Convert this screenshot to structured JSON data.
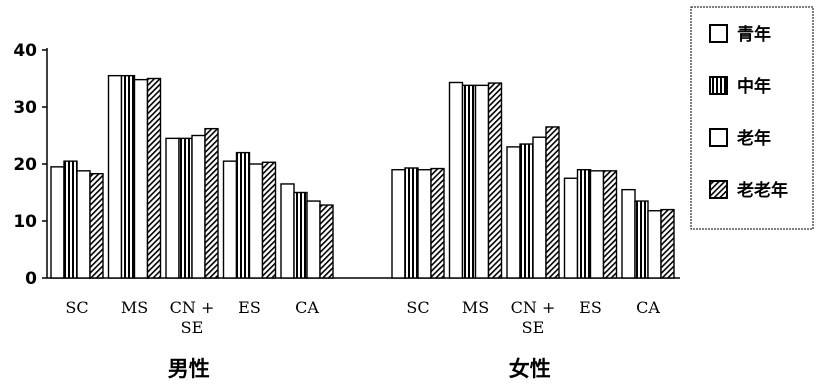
{
  "chart_data": {
    "type": "bar",
    "ylim": [
      0,
      40
    ],
    "yticks": [
      0,
      10,
      20,
      30,
      40
    ],
    "legend_position": "top-right",
    "groups": [
      {
        "label": "男性",
        "categories": [
          "SC",
          "MS",
          "CN + SE",
          "ES",
          "CA"
        ],
        "series": [
          {
            "name": "青年",
            "values": [
              19.5,
              35.5,
              24.5,
              20.5,
              16.5
            ]
          },
          {
            "name": "中年",
            "values": [
              20.5,
              35.5,
              24.5,
              22.0,
              15.0
            ]
          },
          {
            "name": "老年",
            "values": [
              18.8,
              34.8,
              25.0,
              20.0,
              13.5
            ]
          },
          {
            "name": "老老年",
            "values": [
              18.3,
              35.0,
              26.2,
              20.3,
              12.8
            ]
          }
        ]
      },
      {
        "label": "女性",
        "categories": [
          "SC",
          "MS",
          "CN + SE",
          "ES",
          "CA"
        ],
        "series": [
          {
            "name": "青年",
            "values": [
              19.0,
              34.3,
              23.0,
              17.5,
              15.5
            ]
          },
          {
            "name": "中年",
            "values": [
              19.3,
              33.8,
              23.5,
              19.0,
              13.5
            ]
          },
          {
            "name": "老年",
            "values": [
              19.0,
              33.8,
              24.7,
              18.8,
              11.8
            ]
          },
          {
            "name": "老老年",
            "values": [
              19.2,
              34.2,
              26.5,
              18.8,
              12.0
            ]
          }
        ]
      }
    ],
    "legend": [
      {
        "name": "青年",
        "pattern": "empty"
      },
      {
        "name": "中年",
        "pattern": "vertical-stripes"
      },
      {
        "name": "老年",
        "pattern": "empty"
      },
      {
        "name": "老老年",
        "pattern": "diagonal-hatch"
      }
    ]
  }
}
